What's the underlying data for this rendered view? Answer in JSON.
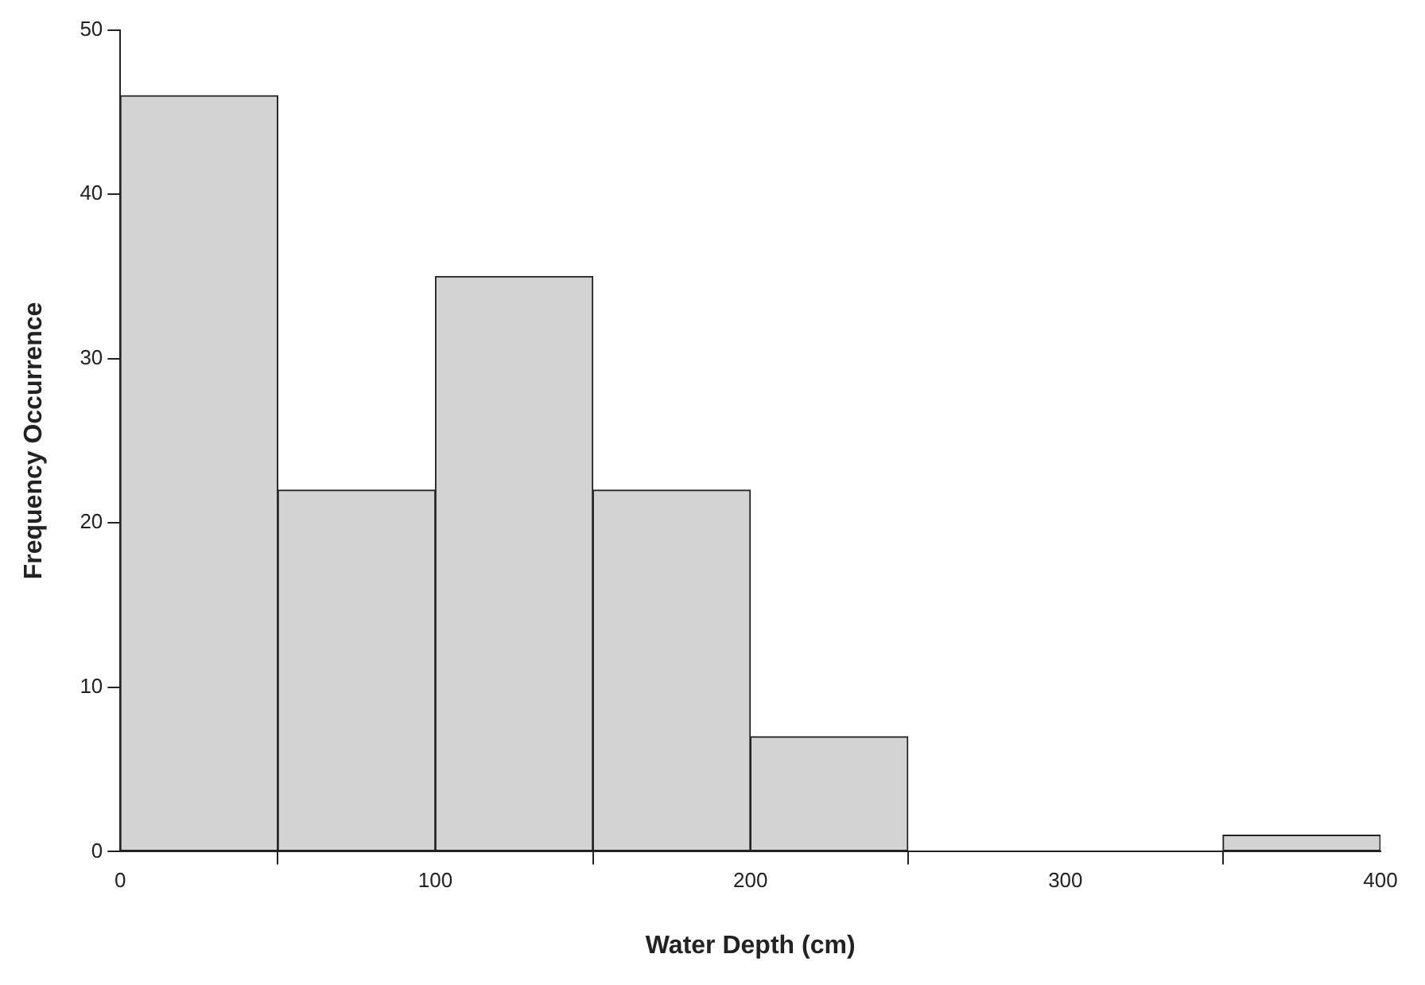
{
  "chart_data": {
    "type": "histogram",
    "xlabel": "Water Depth (cm)",
    "ylabel": "Frequency Occurrence",
    "bins": [
      0,
      50,
      100,
      150,
      200,
      250,
      300,
      350,
      400
    ],
    "values": [
      46,
      22,
      35,
      22,
      7,
      0,
      0,
      1
    ],
    "color": "#d3d3d3",
    "xlim": [
      0,
      400
    ],
    "xticks": [
      0,
      100,
      200,
      300,
      400
    ],
    "ylim": [
      0,
      50
    ],
    "yticks": [
      0,
      10,
      20,
      30,
      40,
      50
    ],
    "grid": false,
    "legend": false
  }
}
